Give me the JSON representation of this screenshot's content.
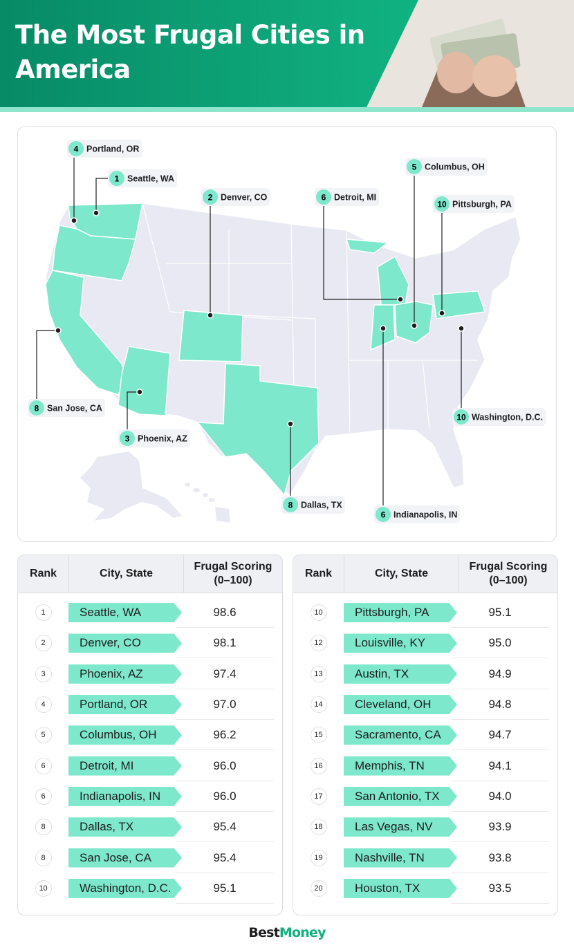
{
  "header": {
    "title": "The Most Frugal Cities in America"
  },
  "map": {
    "markers": [
      {
        "rank": 4,
        "city": "Portland, OR"
      },
      {
        "rank": 1,
        "city": "Seattle, WA"
      },
      {
        "rank": 2,
        "city": "Denver, CO"
      },
      {
        "rank": 6,
        "city": "Detroit, MI"
      },
      {
        "rank": 5,
        "city": "Columbus, OH"
      },
      {
        "rank": 10,
        "city": "Pittsburgh, PA"
      },
      {
        "rank": 8,
        "city": "San Jose, CA"
      },
      {
        "rank": 3,
        "city": "Phoenix, AZ"
      },
      {
        "rank": 10,
        "city": "Washington, D.C."
      },
      {
        "rank": 8,
        "city": "Dallas, TX"
      },
      {
        "rank": 6,
        "city": "Indianapolis, IN"
      }
    ]
  },
  "tables": [
    {
      "headers": [
        "Rank",
        "City, State",
        "Frugal Scoring (0–100)"
      ],
      "rows": [
        [
          1,
          "Seattle, WA",
          "98.6"
        ],
        [
          2,
          "Denver, CO",
          "98.1"
        ],
        [
          3,
          "Phoenix, AZ",
          "97.4"
        ],
        [
          4,
          "Portland, OR",
          "97.0"
        ],
        [
          5,
          "Columbus, OH",
          "96.2"
        ],
        [
          6,
          "Detroit, MI",
          "96.0"
        ],
        [
          6,
          "Indianapolis, IN",
          "96.0"
        ],
        [
          8,
          "Dallas, TX",
          "95.4"
        ],
        [
          8,
          "San Jose, CA",
          "95.4"
        ],
        [
          10,
          "Washington, D.C.",
          "95.1"
        ]
      ]
    },
    {
      "headers": [
        "Rank",
        "City, State",
        "Frugal Scoring (0–100)"
      ],
      "rows": [
        [
          10,
          "Pittsburgh, PA",
          "95.1"
        ],
        [
          12,
          "Louisville, KY",
          "95.0"
        ],
        [
          13,
          "Austin, TX",
          "94.9"
        ],
        [
          14,
          "Cleveland, OH",
          "94.8"
        ],
        [
          15,
          "Sacramento, CA",
          "94.7"
        ],
        [
          16,
          "Memphis, TN",
          "94.1"
        ],
        [
          17,
          "San Antonio, TX",
          "94.0"
        ],
        [
          18,
          "Las Vegas, NV",
          "93.9"
        ],
        [
          19,
          "Nashville, TN",
          "93.8"
        ],
        [
          20,
          "Houston, TX",
          "93.5"
        ]
      ]
    }
  ],
  "footer": {
    "logo_first": "Best",
    "logo_second": "Money"
  }
}
